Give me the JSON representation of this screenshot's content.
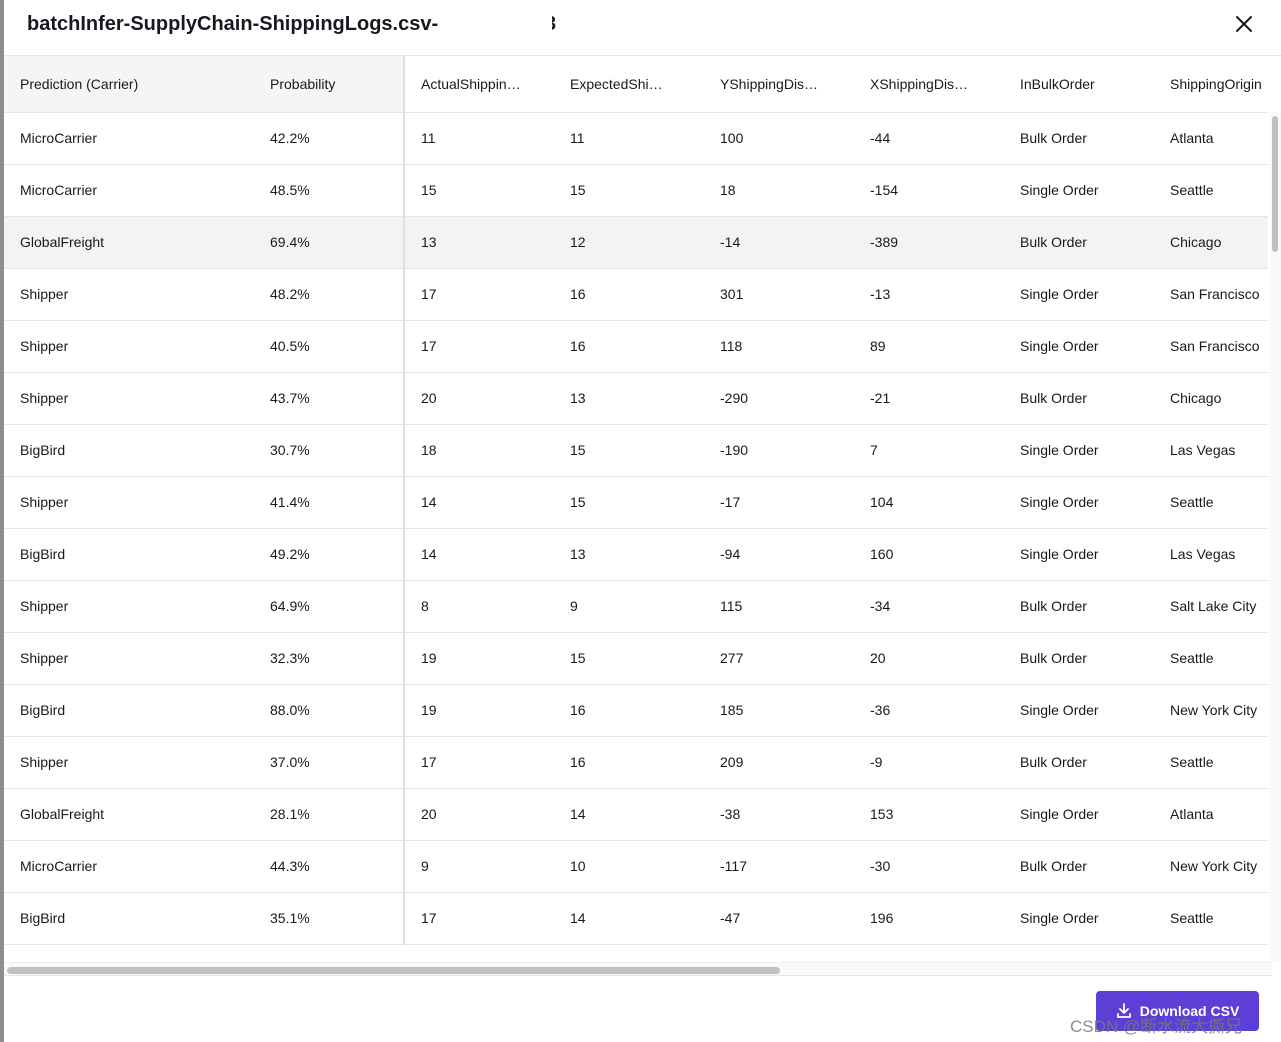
{
  "modal": {
    "title": "batchInfer-SupplyChain-ShippingLogs.csv-",
    "title_suffix": "3"
  },
  "table": {
    "columns": [
      "Prediction (Carrier)",
      "Probability",
      "ActualShippin…",
      "ExpectedShi…",
      "YShippingDis…",
      "XShippingDis…",
      "InBulkOrder",
      "ShippingOrigin"
    ],
    "rows": [
      [
        "MicroCarrier",
        "42.2%",
        "11",
        "11",
        "100",
        "-44",
        "Bulk Order",
        "Atlanta"
      ],
      [
        "MicroCarrier",
        "48.5%",
        "15",
        "15",
        "18",
        "-154",
        "Single Order",
        "Seattle"
      ],
      [
        "GlobalFreight",
        "69.4%",
        "13",
        "12",
        "-14",
        "-389",
        "Bulk Order",
        "Chicago"
      ],
      [
        "Shipper",
        "48.2%",
        "17",
        "16",
        "301",
        "-13",
        "Single Order",
        "San Francisco"
      ],
      [
        "Shipper",
        "40.5%",
        "17",
        "16",
        "118",
        "89",
        "Single Order",
        "San Francisco"
      ],
      [
        "Shipper",
        "43.7%",
        "20",
        "13",
        "-290",
        "-21",
        "Bulk Order",
        "Chicago"
      ],
      [
        "BigBird",
        "30.7%",
        "18",
        "15",
        "-190",
        "7",
        "Single Order",
        "Las Vegas"
      ],
      [
        "Shipper",
        "41.4%",
        "14",
        "15",
        "-17",
        "104",
        "Single Order",
        "Seattle"
      ],
      [
        "BigBird",
        "49.2%",
        "14",
        "13",
        "-94",
        "160",
        "Single Order",
        "Las Vegas"
      ],
      [
        "Shipper",
        "64.9%",
        "8",
        "9",
        "115",
        "-34",
        "Bulk Order",
        "Salt Lake City"
      ],
      [
        "Shipper",
        "32.3%",
        "19",
        "15",
        "277",
        "20",
        "Bulk Order",
        "Seattle"
      ],
      [
        "BigBird",
        "88.0%",
        "19",
        "16",
        "185",
        "-36",
        "Single Order",
        "New York City"
      ],
      [
        "Shipper",
        "37.0%",
        "17",
        "16",
        "209",
        "-9",
        "Bulk Order",
        "Seattle"
      ],
      [
        "GlobalFreight",
        "28.1%",
        "20",
        "14",
        "-38",
        "153",
        "Single Order",
        "Atlanta"
      ],
      [
        "MicroCarrier",
        "44.3%",
        "9",
        "10",
        "-117",
        "-30",
        "Bulk Order",
        "New York City"
      ],
      [
        "BigBird",
        "35.1%",
        "17",
        "14",
        "-47",
        "196",
        "Single Order",
        "Seattle"
      ]
    ],
    "highlighted_row": 2
  },
  "footer": {
    "download_label": "Download CSV"
  },
  "watermark": "CSDN @断水流大撕兄",
  "colors": {
    "accent": "#5b3fd6",
    "row_highlight": "#f3f3f3",
    "pinned_bg": "#f5f5f5"
  },
  "icons": {
    "close": "close-icon",
    "download": "download-icon"
  }
}
